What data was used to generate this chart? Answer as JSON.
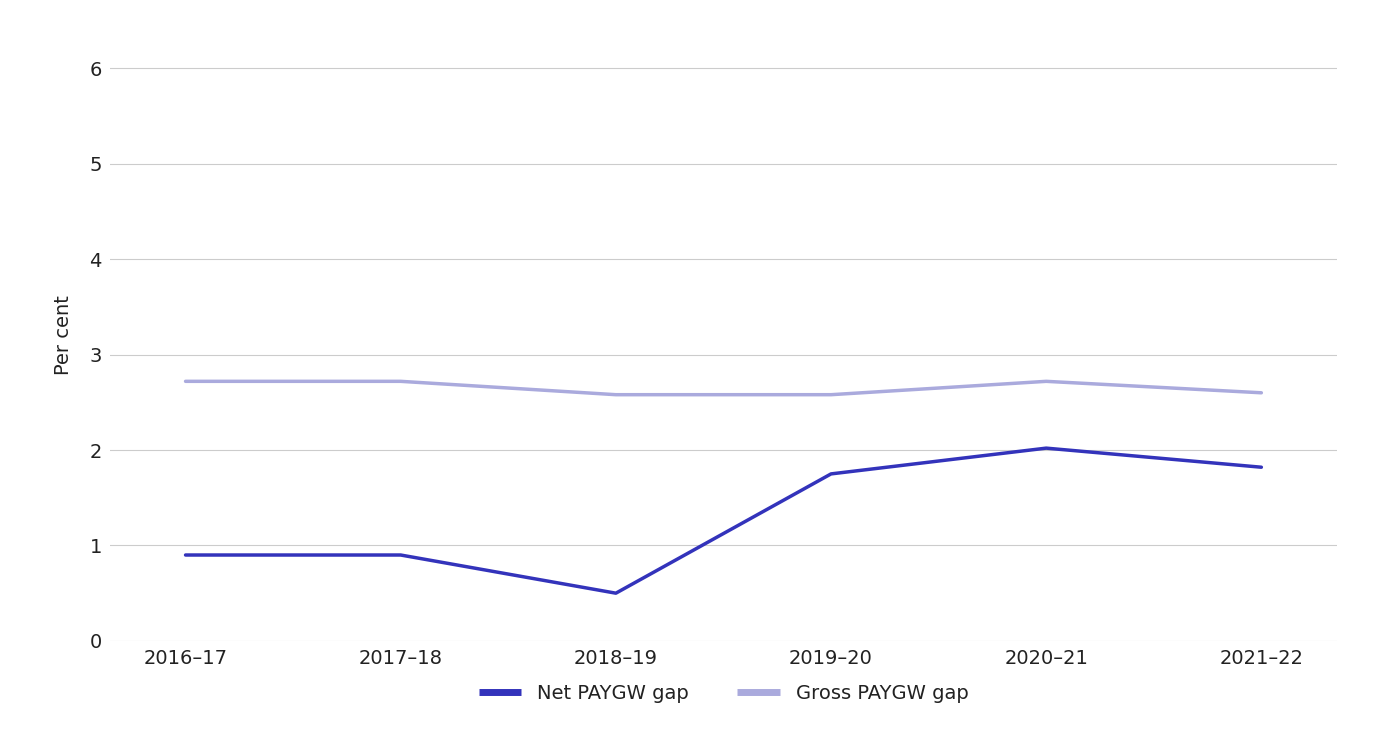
{
  "categories": [
    "2016–17",
    "2017–18",
    "2018–19",
    "2019–20",
    "2020–21",
    "2021–22"
  ],
  "net_gap": [
    0.9,
    0.9,
    0.5,
    1.75,
    2.02,
    1.82
  ],
  "gross_gap": [
    2.72,
    2.72,
    2.58,
    2.58,
    2.72,
    2.6
  ],
  "net_color": "#3333bb",
  "gross_color": "#aaaadd",
  "net_label": "Net PAYGW gap",
  "gross_label": "Gross PAYGW gap",
  "ylabel": "Per cent",
  "ylim": [
    0,
    6.4
  ],
  "yticks": [
    0,
    1,
    2,
    3,
    4,
    5,
    6
  ],
  "background_color": "#ffffff",
  "grid_color": "#cccccc",
  "line_width": 2.5,
  "tick_fontsize": 14,
  "label_fontsize": 14
}
